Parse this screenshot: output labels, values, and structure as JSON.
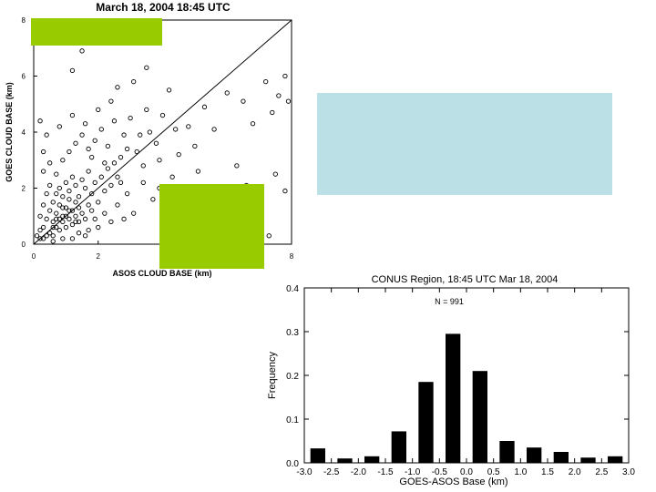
{
  "chart_data": [
    {
      "type": "scatter",
      "title": "March 18, 2004 18:45 UTC",
      "xlabel": "ASOS CLOUD BASE (km)",
      "ylabel": "GOES CLOUD BASE (km)",
      "xlim": [
        0,
        8
      ],
      "ylim": [
        0,
        8
      ],
      "xticks": [
        "0",
        "2",
        "4",
        "6",
        "8"
      ],
      "yticks": [
        "0",
        "2",
        "4",
        "6",
        "8"
      ],
      "reference_line": "1:1 diagonal",
      "marker": "open circle",
      "points": [
        [
          0.3,
          0.2
        ],
        [
          0.5,
          0.4
        ],
        [
          0.6,
          0.3
        ],
        [
          0.7,
          0.6
        ],
        [
          0.8,
          0.5
        ],
        [
          0.9,
          0.8
        ],
        [
          1.0,
          0.6
        ],
        [
          1.1,
          0.9
        ],
        [
          1.2,
          0.7
        ],
        [
          1.3,
          1.0
        ],
        [
          0.4,
          0.9
        ],
        [
          0.5,
          1.2
        ],
        [
          0.6,
          0.8
        ],
        [
          0.7,
          1.1
        ],
        [
          0.8,
          1.4
        ],
        [
          0.9,
          1.0
        ],
        [
          1.0,
          1.3
        ],
        [
          1.1,
          1.6
        ],
        [
          1.2,
          1.2
        ],
        [
          1.3,
          1.5
        ],
        [
          1.4,
          0.8
        ],
        [
          1.5,
          1.1
        ],
        [
          1.6,
          0.9
        ],
        [
          1.7,
          1.4
        ],
        [
          1.8,
          1.2
        ],
        [
          0.3,
          0.6
        ],
        [
          0.4,
          0.3
        ],
        [
          0.2,
          0.5
        ],
        [
          0.6,
          1.5
        ],
        [
          0.7,
          1.8
        ],
        [
          0.8,
          2.0
        ],
        [
          0.9,
          1.7
        ],
        [
          1.0,
          2.2
        ],
        [
          1.1,
          1.9
        ],
        [
          1.2,
          2.4
        ],
        [
          1.3,
          2.1
        ],
        [
          1.4,
          1.7
        ],
        [
          1.5,
          2.3
        ],
        [
          1.6,
          2.0
        ],
        [
          1.7,
          2.6
        ],
        [
          1.8,
          1.8
        ],
        [
          1.9,
          2.2
        ],
        [
          2.0,
          1.5
        ],
        [
          2.1,
          2.4
        ],
        [
          2.2,
          1.9
        ],
        [
          2.3,
          2.7
        ],
        [
          2.4,
          2.1
        ],
        [
          2.5,
          2.9
        ],
        [
          2.6,
          2.4
        ],
        [
          2.7,
          3.1
        ],
        [
          0.2,
          1.0
        ],
        [
          0.3,
          1.4
        ],
        [
          0.4,
          1.8
        ],
        [
          0.5,
          2.1
        ],
        [
          0.3,
          2.6
        ],
        [
          0.5,
          2.9
        ],
        [
          0.7,
          2.5
        ],
        [
          0.9,
          3.0
        ],
        [
          1.1,
          3.3
        ],
        [
          1.3,
          3.6
        ],
        [
          1.5,
          3.9
        ],
        [
          1.7,
          3.4
        ],
        [
          1.9,
          3.7
        ],
        [
          2.1,
          4.1
        ],
        [
          2.3,
          3.5
        ],
        [
          2.5,
          4.4
        ],
        [
          0.4,
          3.9
        ],
        [
          0.8,
          4.2
        ],
        [
          1.2,
          4.6
        ],
        [
          1.6,
          4.3
        ],
        [
          2.0,
          4.8
        ],
        [
          2.4,
          5.1
        ],
        [
          2.8,
          3.9
        ],
        [
          3.0,
          4.5
        ],
        [
          3.2,
          3.3
        ],
        [
          3.4,
          2.8
        ],
        [
          3.6,
          4.0
        ],
        [
          3.8,
          3.6
        ],
        [
          4.0,
          4.6
        ],
        [
          1.2,
          6.2
        ],
        [
          1.5,
          6.9
        ],
        [
          1.0,
          7.2
        ],
        [
          2.6,
          5.6
        ],
        [
          3.1,
          5.8
        ],
        [
          3.5,
          6.3
        ],
        [
          4.2,
          5.5
        ],
        [
          4.5,
          3.2
        ],
        [
          4.8,
          4.2
        ],
        [
          5.0,
          3.5
        ],
        [
          5.3,
          4.9
        ],
        [
          5.6,
          4.1
        ],
        [
          6.0,
          5.4
        ],
        [
          6.5,
          5.1
        ],
        [
          7.2,
          5.8
        ],
        [
          7.6,
          5.3
        ],
        [
          7.8,
          6.0
        ],
        [
          6.8,
          4.3
        ],
        [
          7.4,
          4.7
        ],
        [
          7.9,
          5.1
        ],
        [
          6.3,
          2.8
        ],
        [
          6.6,
          2.1
        ],
        [
          7.0,
          1.3
        ],
        [
          7.5,
          2.5
        ],
        [
          7.8,
          1.9
        ],
        [
          6.1,
          1.5
        ],
        [
          5.8,
          0.8
        ],
        [
          6.9,
          0.6
        ],
        [
          7.3,
          0.3
        ],
        [
          5.4,
          1.4
        ],
        [
          5.1,
          2.6
        ],
        [
          4.6,
          1.9
        ],
        [
          4.3,
          2.4
        ],
        [
          4.1,
          1.2
        ],
        [
          3.9,
          2.0
        ],
        [
          3.7,
          1.6
        ],
        [
          3.4,
          2.2
        ],
        [
          3.1,
          1.1
        ],
        [
          2.9,
          1.8
        ],
        [
          2.8,
          0.9
        ],
        [
          2.6,
          1.4
        ],
        [
          2.4,
          0.8
        ],
        [
          2.2,
          1.1
        ],
        [
          2.0,
          0.6
        ],
        [
          1.9,
          0.9
        ],
        [
          1.7,
          0.5
        ],
        [
          1.6,
          0.3
        ],
        [
          1.4,
          0.4
        ],
        [
          1.2,
          0.2
        ],
        [
          0.9,
          0.2
        ],
        [
          0.6,
          0.1
        ],
        [
          0.1,
          0.3
        ],
        [
          0.2,
          0.2
        ],
        [
          0.8,
          0.9
        ],
        [
          1.0,
          1.0
        ],
        [
          1.1,
          1.2
        ],
        [
          0.9,
          1.3
        ],
        [
          0.7,
          0.9
        ],
        [
          1.4,
          1.3
        ],
        [
          1.3,
          0.8
        ],
        [
          0.6,
          0.6
        ],
        [
          2.2,
          2.9
        ],
        [
          2.7,
          2.2
        ],
        [
          3.3,
          3.9
        ],
        [
          3.9,
          3.0
        ],
        [
          4.4,
          4.1
        ],
        [
          1.8,
          3.1
        ],
        [
          2.9,
          3.4
        ],
        [
          3.5,
          4.8
        ],
        [
          0.3,
          3.3
        ],
        [
          0.2,
          4.4
        ]
      ]
    },
    {
      "type": "bar",
      "title": "CONUS Region, 18:45 UTC Mar 18, 2004",
      "annotation": "N = 991",
      "xlabel": "GOES-ASOS Base (km)",
      "ylabel": "Frequency",
      "xlim": [
        -3.0,
        3.0
      ],
      "ylim": [
        0.0,
        0.4
      ],
      "xticks": [
        "-3.0",
        "-2.5",
        "-2.0",
        "-1.5",
        "-1.0",
        "-0.5",
        "0.0",
        "0.5",
        "1.0",
        "1.5",
        "2.0",
        "2.5",
        "3.0"
      ],
      "yticks": [
        "0.0",
        "0.1",
        "0.2",
        "0.3",
        "0.4"
      ],
      "bins": [
        -2.75,
        -2.25,
        -1.75,
        -1.25,
        -0.75,
        -0.25,
        0.25,
        0.75,
        1.25,
        1.75,
        2.25,
        2.75
      ],
      "values": [
        0.033,
        0.01,
        0.015,
        0.072,
        0.185,
        0.295,
        0.21,
        0.05,
        0.035,
        0.025,
        0.012,
        0.015
      ],
      "colors": {
        "bar": "#000000"
      }
    }
  ],
  "overlays": {
    "green": "#99cc00",
    "cyan": "#bbe1e6"
  }
}
